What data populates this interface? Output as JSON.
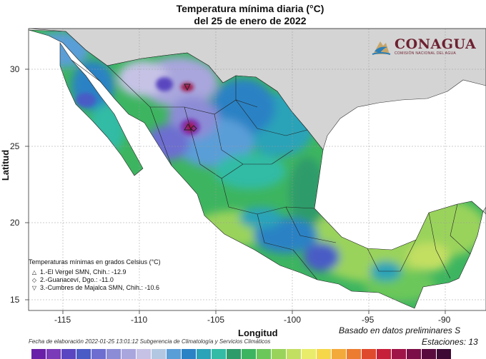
{
  "title_line1": "Temperatura mínima diaria (°C)",
  "title_line2": "del 25 de enero de 2022",
  "axes": {
    "x_label": "Longitud",
    "y_label": "Latitud",
    "x_ticks": [
      "-115",
      "-110",
      "-105",
      "-100",
      "-95",
      "-90"
    ],
    "y_ticks": [
      "30",
      "25",
      "20",
      "15"
    ]
  },
  "logo": {
    "name": "CONAGUA",
    "subtitle": "COMISIÓN NACIONAL DEL AGUA",
    "icon": "conagua-logo-icon"
  },
  "legend": {
    "title": "Temperaturas mínimas en grados Celsius (°C)",
    "items": [
      {
        "symbol": "△",
        "text": "1.-El Vergel SMN, Chih.: -12.9"
      },
      {
        "symbol": "◇",
        "text": "2.-Guanaceví, Dgo.: -11.0"
      },
      {
        "symbol": "▽",
        "text": "3.-Cumbres de Majalca SMN, Chih.: -10.6"
      }
    ]
  },
  "footnote": "Fecha de elaboración 2022-01-25 13:01:12 Subgerencia de Climatología y Servicios Climáticos",
  "source_note": "Basado en datos preliminares S",
  "stations_note": "Estaciones: 13",
  "colors": {
    "ocean": "#ffffff",
    "us_land": "#d4d4d4",
    "brand": "#6d2131",
    "scale": [
      "#6a1fa8",
      "#7b3ab8",
      "#5a46c0",
      "#4a5bc6",
      "#6d6ed0",
      "#8c8cd6",
      "#a9a6dd",
      "#c6c2e6",
      "#b2c8e2",
      "#5a9ed8",
      "#2b82c4",
      "#2aa3b8",
      "#33bba5",
      "#2e9b6b",
      "#3db560",
      "#6cc75a",
      "#9ad35c",
      "#c3df62",
      "#e8ec6a",
      "#f6d74a",
      "#f3aa3b",
      "#ec7c30",
      "#e04a2c",
      "#c61f3a",
      "#a01548",
      "#7b0e47",
      "#5a0b3e",
      "#3d0833"
    ]
  }
}
